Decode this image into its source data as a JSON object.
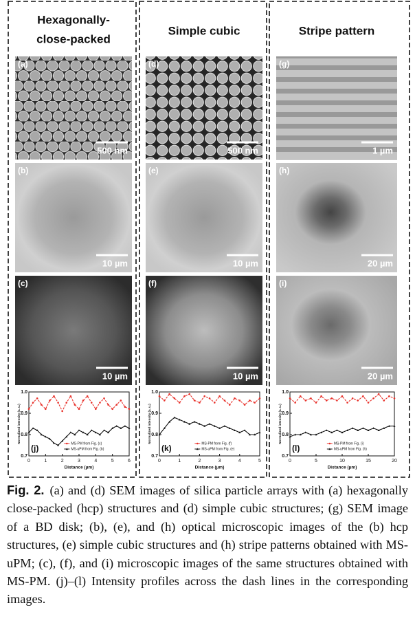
{
  "columns": [
    {
      "title_lines": [
        "Hexagonally-",
        "close-packed"
      ],
      "panels": [
        {
          "label": "(a)",
          "scale": "500 nm"
        },
        {
          "label": "(b)",
          "scale": "10 µm"
        },
        {
          "label": "(c)",
          "scale": "10 µm"
        }
      ]
    },
    {
      "title_lines": [
        "Simple cubic"
      ],
      "panels": [
        {
          "label": "(d)",
          "scale": "500 nm"
        },
        {
          "label": "(e)",
          "scale": "10 µm"
        },
        {
          "label": "(f)",
          "scale": "10 µm"
        }
      ]
    },
    {
      "title_lines": [
        "Stripe pattern"
      ],
      "panels": [
        {
          "label": "(g)",
          "scale": "1 µm"
        },
        {
          "label": "(h)",
          "scale": "20 µm"
        },
        {
          "label": "(i)",
          "scale": "20 µm"
        }
      ]
    }
  ],
  "chart_data": [
    {
      "type": "line",
      "panel_label": "(j)",
      "xlabel": "Distance (µm)",
      "ylabel": "Normalized intensity (a. u.)",
      "x": [
        0,
        0.25,
        0.5,
        0.75,
        1,
        1.25,
        1.5,
        1.75,
        2,
        2.25,
        2.5,
        2.75,
        3,
        3.25,
        3.5,
        3.75,
        4,
        4.25,
        4.5,
        4.75,
        5,
        5.25,
        5.5,
        5.75,
        6
      ],
      "xlim": [
        0,
        6
      ],
      "xticks": [
        0,
        1,
        2,
        3,
        4,
        5,
        6
      ],
      "ylim": [
        0.7,
        1.0
      ],
      "yticks": [
        0.7,
        0.8,
        0.9,
        {
          "value": 1,
          "label": "1.0"
        }
      ],
      "series": [
        {
          "name": "MS-PM from Fig. (c)",
          "color": "#e8312a",
          "values": [
            0.92,
            0.95,
            0.97,
            0.94,
            0.92,
            0.96,
            0.98,
            0.95,
            0.91,
            0.95,
            0.98,
            0.94,
            0.92,
            0.96,
            0.98,
            0.95,
            0.92,
            0.95,
            0.97,
            0.94,
            0.92,
            0.94,
            0.96,
            0.93,
            0.92
          ]
        },
        {
          "name": "MS-uPM from Fig. (b)",
          "color": "#111111",
          "values": [
            0.81,
            0.83,
            0.82,
            0.8,
            0.79,
            0.78,
            0.76,
            0.75,
            0.77,
            0.79,
            0.81,
            0.8,
            0.82,
            0.81,
            0.8,
            0.82,
            0.81,
            0.8,
            0.82,
            0.81,
            0.83,
            0.84,
            0.83,
            0.84,
            0.83
          ]
        }
      ]
    },
    {
      "type": "line",
      "panel_label": "(k)",
      "xlabel": "Distance (µm)",
      "ylabel": "Normalized intensity (a. u.)",
      "x": [
        0,
        0.25,
        0.5,
        0.75,
        1,
        1.25,
        1.5,
        1.75,
        2,
        2.25,
        2.5,
        2.75,
        3,
        3.25,
        3.5,
        3.75,
        4,
        4.25,
        4.5,
        4.75,
        5
      ],
      "xlim": [
        0,
        5
      ],
      "xticks": [
        0,
        1,
        2,
        3,
        4,
        5
      ],
      "ylim": [
        0.7,
        1.0
      ],
      "yticks": [
        0.7,
        0.8,
        0.9,
        {
          "value": 1,
          "label": "1.0"
        }
      ],
      "series": [
        {
          "name": "MS-PM from Fig. (f)",
          "color": "#e8312a",
          "values": [
            0.98,
            0.96,
            0.99,
            0.97,
            0.95,
            0.98,
            0.99,
            0.96,
            0.95,
            0.98,
            0.97,
            0.95,
            0.98,
            0.96,
            0.94,
            0.97,
            0.96,
            0.94,
            0.96,
            0.95,
            0.97
          ]
        },
        {
          "name": "MS-uPM from Fig. (e)",
          "color": "#111111",
          "values": [
            0.8,
            0.83,
            0.86,
            0.88,
            0.87,
            0.86,
            0.85,
            0.86,
            0.85,
            0.84,
            0.85,
            0.84,
            0.83,
            0.84,
            0.83,
            0.82,
            0.81,
            0.82,
            0.8,
            0.8,
            0.81
          ]
        }
      ]
    },
    {
      "type": "line",
      "panel_label": "(l)",
      "xlabel": "Distance (µm)",
      "ylabel": "Normalized intensity (a. u.)",
      "x": [
        0,
        1,
        2,
        3,
        4,
        5,
        6,
        7,
        8,
        9,
        10,
        11,
        12,
        13,
        14,
        15,
        16,
        17,
        18,
        19,
        20
      ],
      "xlim": [
        0,
        20
      ],
      "xticks": [
        0,
        5,
        10,
        15,
        20
      ],
      "ylim": [
        0.7,
        1.0
      ],
      "yticks": [
        0.7,
        0.8,
        0.9,
        {
          "value": 1,
          "label": "1.0"
        }
      ],
      "series": [
        {
          "name": "MS-PM from Fig. (i)",
          "color": "#e8312a",
          "values": [
            0.97,
            0.95,
            0.98,
            0.96,
            0.97,
            0.95,
            0.98,
            0.96,
            0.97,
            0.96,
            0.98,
            0.95,
            0.97,
            0.96,
            0.98,
            0.95,
            0.97,
            0.99,
            0.96,
            0.98,
            0.97
          ]
        },
        {
          "name": "MS-uPM from Fig. (h)",
          "color": "#111111",
          "values": [
            0.79,
            0.8,
            0.8,
            0.81,
            0.8,
            0.8,
            0.81,
            0.82,
            0.81,
            0.82,
            0.81,
            0.82,
            0.83,
            0.82,
            0.83,
            0.82,
            0.83,
            0.82,
            0.83,
            0.84,
            0.84
          ]
        }
      ]
    }
  ],
  "caption": {
    "figure": "Fig. 2.",
    "text": "(a) and (d) SEM images of silica particle arrays with (a) hexagonally close-packed (hcp) structures and (d) simple cubic structures; (g) SEM image of a BD disk; (b), (e), and (h) optical microscopic images of the (b) hcp structures, (e) simple cubic structures and (h) stripe patterns obtained with MS-uPM; (c), (f), and (i) microscopic images of the same structures obtained with MS-PM. (j)–(l) Intensity profiles across the dash lines in the corresponding images."
  }
}
